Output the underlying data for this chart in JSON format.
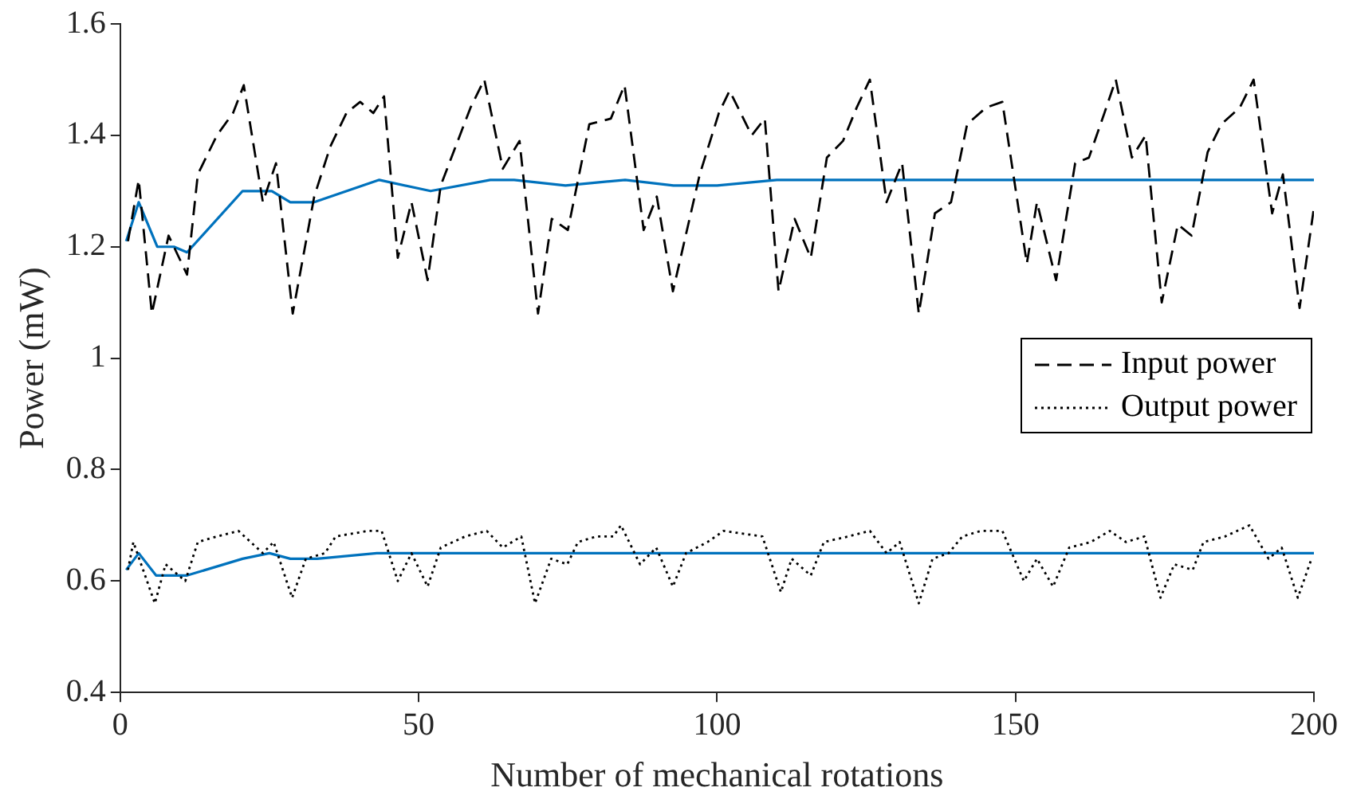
{
  "chart_data": {
    "type": "line",
    "xlabel": "Number of mechanical rotations",
    "ylabel": "Power (mW)",
    "xlim": [
      0,
      200
    ],
    "xticks": [
      0,
      50,
      100,
      150,
      200
    ],
    "ylim": [
      0.4,
      1.6
    ],
    "yticks": [
      0.4,
      0.6,
      0.8,
      1,
      1.2,
      1.4,
      1.6
    ],
    "grid": false,
    "legend": "right",
    "marker": "none",
    "series": [
      {
        "name": "Input power",
        "color": "#000000",
        "line_style": "dashed",
        "x": [
          1.3,
          3.1,
          5.3,
          8.1,
          11.2,
          13,
          16.2,
          18.9,
          20.7,
          23.9,
          26.1,
          28.9,
          32.5,
          35.2,
          37.9,
          40.2,
          42.4,
          44.2,
          46.5,
          48.8,
          51.5,
          53.7,
          58.7,
          61,
          64.1,
          66.9,
          70,
          72.3,
          75,
          78.6,
          82.2,
          84.5,
          87.7,
          89.9,
          92.6,
          97.1,
          100.3,
          102.1,
          105.8,
          108,
          110.3,
          113,
          115.7,
          118.4,
          121.1,
          123.4,
          125.6,
          128.4,
          131,
          133.8,
          136.5,
          139.2,
          141.9,
          145.1,
          147.8,
          151.9,
          153.6,
          156.8,
          160,
          162.3,
          164.9,
          166.8,
          169.5,
          171.8,
          174.5,
          177.2,
          179.5,
          182.2,
          184.5,
          187.6,
          189.9,
          193,
          194.8,
          197.6,
          200
        ],
        "values": [
          1.21,
          1.32,
          1.08,
          1.22,
          1.15,
          1.33,
          1.4,
          1.44,
          1.49,
          1.28,
          1.35,
          1.08,
          1.29,
          1.38,
          1.44,
          1.46,
          1.44,
          1.47,
          1.18,
          1.28,
          1.14,
          1.31,
          1.45,
          1.5,
          1.34,
          1.39,
          1.08,
          1.25,
          1.23,
          1.42,
          1.43,
          1.49,
          1.23,
          1.29,
          1.12,
          1.33,
          1.44,
          1.48,
          1.4,
          1.43,
          1.12,
          1.25,
          1.18,
          1.36,
          1.39,
          1.45,
          1.5,
          1.28,
          1.35,
          1.08,
          1.26,
          1.28,
          1.42,
          1.45,
          1.46,
          1.17,
          1.28,
          1.14,
          1.35,
          1.36,
          1.44,
          1.5,
          1.36,
          1.4,
          1.1,
          1.24,
          1.22,
          1.37,
          1.42,
          1.45,
          1.5,
          1.26,
          1.33,
          1.09,
          1.27
        ]
      },
      {
        "color": "#0072bd",
        "line_style": "solid",
        "x": [
          1,
          3.1,
          6.2,
          9,
          11.2,
          20.5,
          25.4,
          28.5,
          32.5,
          43.4,
          52,
          62,
          66,
          74.6,
          84.6,
          92.7,
          100,
          110,
          120,
          130,
          140,
          150,
          160,
          170,
          180,
          190,
          200
        ],
        "values": [
          1.21,
          1.28,
          1.2,
          1.2,
          1.19,
          1.3,
          1.3,
          1.28,
          1.28,
          1.32,
          1.3,
          1.32,
          1.32,
          1.31,
          1.32,
          1.31,
          1.31,
          1.32,
          1.32,
          1.32,
          1.32,
          1.32,
          1.32,
          1.32,
          1.32,
          1.32,
          1.32
        ]
      },
      {
        "name": "Output power",
        "color": "#000000",
        "line_style": "dotted",
        "x": [
          1.3,
          2.2,
          5.8,
          7.6,
          10.9,
          13,
          16.2,
          19.8,
          23.9,
          25.7,
          28.8,
          31.1,
          34.3,
          36.1,
          41.5,
          43.8,
          46.5,
          48.8,
          51.5,
          53.7,
          57.8,
          61.4,
          64.1,
          67.2,
          69.5,
          72.2,
          74.9,
          76.7,
          79.8,
          82.6,
          83.9,
          87.1,
          89.8,
          92.6,
          94.8,
          98.4,
          101.1,
          107.6,
          110.7,
          112.5,
          115.7,
          117.9,
          122,
          125.6,
          128.4,
          130.6,
          133.8,
          136.1,
          138.8,
          141.1,
          144.2,
          147.8,
          151.4,
          153.6,
          156.3,
          159,
          162.6,
          165.8,
          168.5,
          171.6,
          174.3,
          176.6,
          179.7,
          181.5,
          185.1,
          189.2,
          192.4,
          194.6,
          197.3,
          199.6
        ],
        "values": [
          0.62,
          0.67,
          0.56,
          0.63,
          0.6,
          0.67,
          0.68,
          0.69,
          0.65,
          0.67,
          0.57,
          0.64,
          0.65,
          0.68,
          0.69,
          0.69,
          0.6,
          0.65,
          0.59,
          0.66,
          0.68,
          0.69,
          0.66,
          0.68,
          0.56,
          0.64,
          0.63,
          0.67,
          0.68,
          0.68,
          0.7,
          0.63,
          0.66,
          0.59,
          0.65,
          0.67,
          0.69,
          0.68,
          0.58,
          0.64,
          0.61,
          0.67,
          0.68,
          0.69,
          0.65,
          0.67,
          0.56,
          0.64,
          0.65,
          0.68,
          0.69,
          0.69,
          0.6,
          0.64,
          0.59,
          0.66,
          0.67,
          0.69,
          0.67,
          0.68,
          0.57,
          0.63,
          0.62,
          0.67,
          0.68,
          0.7,
          0.64,
          0.66,
          0.57,
          0.64
        ]
      },
      {
        "color": "#0072bd",
        "line_style": "solid",
        "x": [
          1,
          3.1,
          6,
          11.2,
          20.5,
          25,
          28.5,
          33,
          43,
          52,
          60,
          70,
          80,
          90,
          100,
          120,
          140,
          160,
          180,
          200
        ],
        "values": [
          0.62,
          0.65,
          0.61,
          0.61,
          0.64,
          0.65,
          0.64,
          0.64,
          0.65,
          0.65,
          0.65,
          0.65,
          0.65,
          0.65,
          0.65,
          0.65,
          0.65,
          0.65,
          0.65,
          0.65
        ]
      }
    ]
  }
}
